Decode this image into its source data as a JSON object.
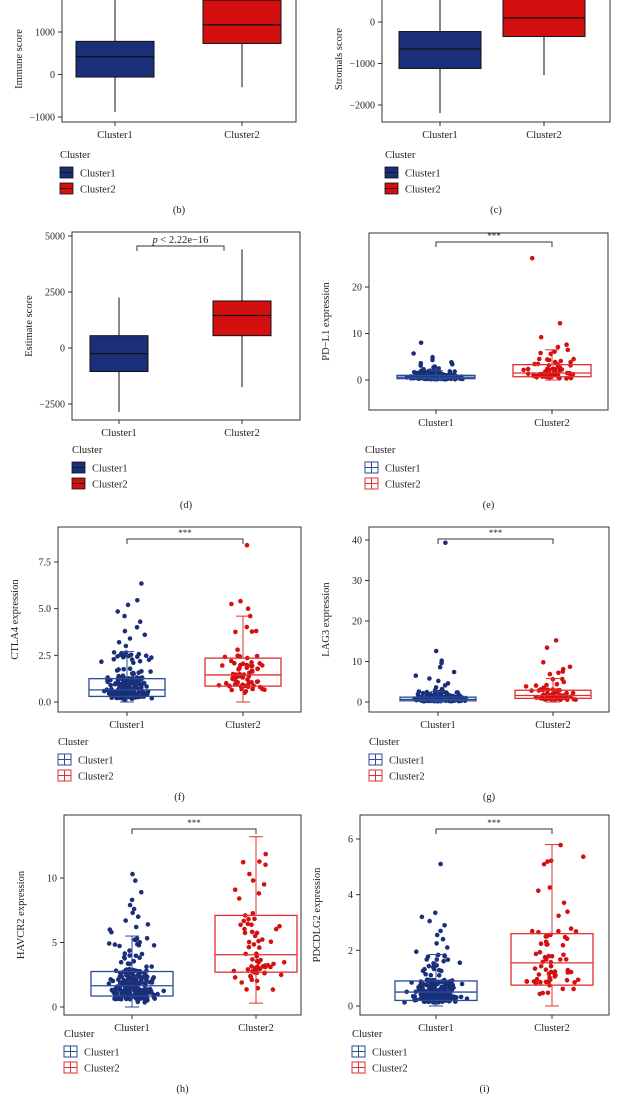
{
  "colors": {
    "cluster1": "#1a2f78",
    "cluster2": "#d40f10",
    "cluster1_line": "#2a4a9a",
    "cluster2_line": "#e03030"
  },
  "chart_data": [
    {
      "id": "b",
      "panel_label": "(b)",
      "type": "box",
      "style": "filled",
      "ylabel": "Immune score",
      "categories": [
        "Cluster1",
        "Cluster2"
      ],
      "yticks": [
        -1000,
        0,
        1000
      ],
      "ylim": [
        -1100,
        1750
      ],
      "boxes": [
        {
          "name": "Cluster1",
          "min": -880,
          "q1": -60,
          "median": 420,
          "q3": 780,
          "max": 1750
        },
        {
          "name": "Cluster2",
          "min": -300,
          "q1": 730,
          "median": 1170,
          "q3": 1750,
          "max": 1750
        }
      ],
      "legend": {
        "title": "Cluster",
        "entries": [
          "Cluster1",
          "Cluster2"
        ]
      }
    },
    {
      "id": "c",
      "panel_label": "(c)",
      "type": "box",
      "style": "filled",
      "ylabel": "Stromals score",
      "categories": [
        "Cluster1",
        "Cluster2"
      ],
      "yticks": [
        -2000,
        -1000,
        0
      ],
      "ylim": [
        -2250,
        550
      ],
      "boxes": [
        {
          "name": "Cluster1",
          "min": -2200,
          "q1": -1120,
          "median": -650,
          "q3": -230,
          "max": 550
        },
        {
          "name": "Cluster2",
          "min": -1280,
          "q1": -350,
          "median": 100,
          "q3": 550,
          "max": 550
        }
      ],
      "legend": {
        "title": "Cluster",
        "entries": [
          "Cluster1",
          "Cluster2"
        ]
      }
    },
    {
      "id": "d",
      "panel_label": "(d)",
      "type": "box",
      "style": "filled",
      "ylabel": "Estimate score",
      "categories": [
        "Cluster1",
        "Cluster2"
      ],
      "yticks": [
        -2500,
        0,
        2500,
        5000
      ],
      "ylim": [
        -3100,
        5300
      ],
      "annotation": "p < 2.22e−16",
      "boxes": [
        {
          "name": "Cluster1",
          "min": -2850,
          "q1": -1050,
          "median": -250,
          "q3": 550,
          "max": 2250
        },
        {
          "name": "Cluster2",
          "min": -1750,
          "q1": 550,
          "median": 1450,
          "q3": 2100,
          "max": 4400
        }
      ],
      "legend": {
        "title": "Cluster",
        "entries": [
          "Cluster1",
          "Cluster2"
        ]
      }
    },
    {
      "id": "e",
      "panel_label": "(e)",
      "type": "box",
      "style": "jitter",
      "ylabel": "PD−L1 expression",
      "categories": [
        "Cluster1",
        "Cluster2"
      ],
      "yticks": [
        0,
        10,
        20
      ],
      "ylim": [
        -1.5,
        27.5
      ],
      "annotation": "***",
      "boxes": [
        {
          "name": "Cluster1",
          "min": 0,
          "q1": 0.3,
          "median": 0.6,
          "q3": 1.0,
          "max": 2.0
        },
        {
          "name": "Cluster2",
          "min": 0,
          "q1": 0.7,
          "median": 1.5,
          "q3": 3.3,
          "max": 6.5
        }
      ],
      "outliers": [
        {
          "series": "Cluster1",
          "values": [
            8.0,
            5.7,
            4.9,
            4.3,
            3.8,
            3.6,
            3.4,
            3.1,
            2.9,
            2.7,
            2.5,
            2.3
          ]
        },
        {
          "series": "Cluster2",
          "values": [
            26.2,
            12.2,
            9.2,
            7.6,
            7.1
          ]
        }
      ],
      "legend": {
        "title": "Cluster",
        "entries": [
          "Cluster1",
          "Cluster2"
        ]
      }
    },
    {
      "id": "f",
      "panel_label": "(f)",
      "type": "box",
      "style": "jitter",
      "ylabel": "CTLA4 expression",
      "categories": [
        "Cluster1",
        "Cluster2"
      ],
      "yticks": [
        0.0,
        2.5,
        5.0,
        7.5
      ],
      "ylim": [
        -0.45,
        9.0
      ],
      "annotation": "***",
      "boxes": [
        {
          "name": "Cluster1",
          "min": 0,
          "q1": 0.3,
          "median": 0.65,
          "q3": 1.25,
          "max": 2.7
        },
        {
          "name": "Cluster2",
          "min": 0,
          "q1": 0.85,
          "median": 1.45,
          "q3": 2.35,
          "max": 4.6
        }
      ],
      "outliers": [
        {
          "series": "Cluster1",
          "values": [
            6.35,
            5.45,
            5.2,
            4.85,
            4.6,
            4.3,
            4.0,
            3.8,
            3.6,
            3.4,
            3.2,
            3.0
          ]
        },
        {
          "series": "Cluster2",
          "values": [
            8.4,
            5.4,
            5.25,
            5.0
          ]
        }
      ],
      "legend": {
        "title": "Cluster",
        "entries": [
          "Cluster1",
          "Cluster2"
        ]
      }
    },
    {
      "id": "g",
      "panel_label": "(g)",
      "type": "box",
      "style": "jitter",
      "ylabel": "LAG3 expression",
      "categories": [
        "Cluster1",
        "Cluster2"
      ],
      "yticks": [
        0,
        10,
        20,
        30,
        40
      ],
      "ylim": [
        -2.0,
        43.0
      ],
      "annotation": "***",
      "boxes": [
        {
          "name": "Cluster1",
          "min": 0,
          "q1": 0.3,
          "median": 0.65,
          "q3": 1.2,
          "max": 2.6
        },
        {
          "name": "Cluster2",
          "min": 0,
          "q1": 0.9,
          "median": 1.6,
          "q3": 2.9,
          "max": 5.8
        }
      ],
      "outliers": [
        {
          "series": "Cluster1",
          "values": [
            39.3,
            12.6,
            10.2,
            9.6,
            8.6,
            7.4,
            6.5,
            5.8,
            5.2,
            4.6,
            4.1,
            3.6,
            3.2,
            2.9
          ]
        },
        {
          "series": "Cluster2",
          "values": [
            15.2,
            13.4,
            9.8,
            8.7,
            8.1,
            7.5,
            7.2,
            6.9
          ]
        }
      ],
      "legend": {
        "title": "Cluster",
        "entries": [
          "Cluster1",
          "Cluster2"
        ]
      }
    },
    {
      "id": "h",
      "panel_label": "(h)",
      "type": "box",
      "style": "jitter",
      "ylabel": "HAVCR2 expression",
      "categories": [
        "Cluster1",
        "Cluster2"
      ],
      "yticks": [
        0,
        5,
        10
      ],
      "ylim": [
        -0.8,
        13.8
      ],
      "annotation": "***",
      "boxes": [
        {
          "name": "Cluster1",
          "min": 0,
          "q1": 0.85,
          "median": 1.65,
          "q3": 2.75,
          "max": 5.5
        },
        {
          "name": "Cluster2",
          "min": 0.3,
          "q1": 2.7,
          "median": 4.05,
          "q3": 7.1,
          "max": 13.2
        }
      ],
      "outliers": [
        {
          "series": "Cluster1",
          "values": [
            10.3,
            9.8,
            8.9,
            8.3,
            7.9,
            7.6,
            7.3,
            7.0,
            6.7,
            6.4,
            6.2,
            6.0,
            5.8
          ]
        }
      ],
      "legend": {
        "title": "Cluster",
        "entries": [
          "Cluster1",
          "Cluster2"
        ]
      }
    },
    {
      "id": "i",
      "panel_label": "(i)",
      "type": "box",
      "style": "jitter",
      "ylabel": "PDCDLG2 expression",
      "categories": [
        "Cluster1",
        "Cluster2"
      ],
      "yticks": [
        0,
        2,
        4,
        6
      ],
      "ylim": [
        -0.3,
        6.2
      ],
      "annotation": "***",
      "boxes": [
        {
          "name": "Cluster1",
          "min": 0,
          "q1": 0.2,
          "median": 0.5,
          "q3": 0.9,
          "max": 1.85
        },
        {
          "name": "Cluster2",
          "min": 0,
          "q1": 0.75,
          "median": 1.55,
          "q3": 2.6,
          "max": 5.8
        }
      ],
      "outliers": [
        {
          "series": "Cluster1",
          "values": [
            5.1,
            3.35,
            3.2,
            3.05,
            2.9,
            2.7,
            2.55,
            2.4,
            2.25,
            2.1,
            1.95
          ]
        }
      ],
      "legend": {
        "title": "Cluster",
        "entries": [
          "Cluster1",
          "Cluster2"
        ]
      }
    }
  ]
}
